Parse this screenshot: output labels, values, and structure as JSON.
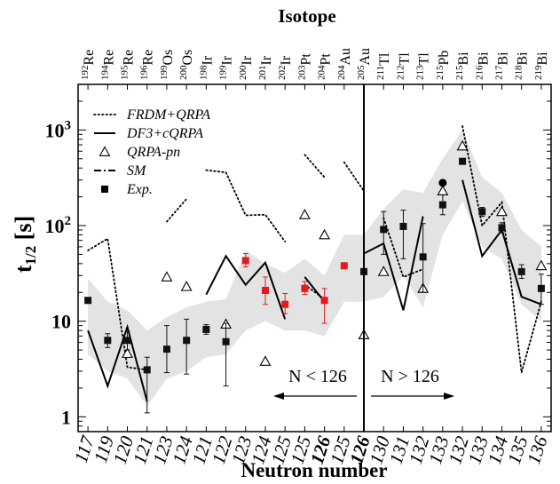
{
  "chart_data": {
    "type": "scatter",
    "title": "Isotope",
    "xlabel": "Neutron number",
    "ylabel": "t1/2 [s]",
    "y_scale": "log",
    "ylim": [
      0.7,
      3000
    ],
    "y_ticks": [
      {
        "value": 1,
        "base": "1",
        "exp": ""
      },
      {
        "value": 10,
        "base": "10",
        "exp": ""
      },
      {
        "value": 100,
        "base": "10",
        "exp": "2"
      },
      {
        "value": 1000,
        "base": "10",
        "exp": "3"
      }
    ],
    "grid": false,
    "x_categories": [
      "117",
      "119",
      "120",
      "121",
      "123",
      "124",
      "121",
      "122",
      "123",
      "124",
      "125",
      "125",
      "126",
      "125",
      "126",
      "130",
      "131",
      "132",
      "133",
      "132",
      "133",
      "134",
      "135",
      "136"
    ],
    "bold_categories": [
      12,
      14
    ],
    "isotopes": [
      {
        "mass": "192",
        "el": "Re"
      },
      {
        "mass": "194",
        "el": "Re"
      },
      {
        "mass": "195",
        "el": "Re"
      },
      {
        "mass": "196",
        "el": "Re"
      },
      {
        "mass": "199",
        "el": "Os"
      },
      {
        "mass": "200",
        "el": "Os"
      },
      {
        "mass": "198",
        "el": "Ir"
      },
      {
        "mass": "199",
        "el": "Ir"
      },
      {
        "mass": "200",
        "el": "Ir"
      },
      {
        "mass": "201",
        "el": "Ir"
      },
      {
        "mass": "202",
        "el": "Ir"
      },
      {
        "mass": "203",
        "el": "Pt"
      },
      {
        "mass": "204",
        "el": "Pt"
      },
      {
        "mass": "204",
        "el": "Au"
      },
      {
        "mass": "205",
        "el": "Au"
      },
      {
        "mass": "211",
        "el": "Tl"
      },
      {
        "mass": "212",
        "el": "Tl"
      },
      {
        "mass": "213",
        "el": "Tl"
      },
      {
        "mass": "215",
        "el": "Pb"
      },
      {
        "mass": "215",
        "el": "Bi"
      },
      {
        "mass": "216",
        "el": "Bi"
      },
      {
        "mass": "217",
        "el": "Bi"
      },
      {
        "mass": "218",
        "el": "Bi"
      },
      {
        "mass": "219",
        "el": "Bi"
      }
    ],
    "legend": [
      {
        "name": "FRDM+QRPA",
        "style": "dotted"
      },
      {
        "name": "DF3+cQRPA",
        "style": "solid"
      },
      {
        "name": "QRPA-pn",
        "style": "triangle"
      },
      {
        "name": "SM",
        "style": "dashdot"
      },
      {
        "name": "Exp.",
        "style": "square"
      }
    ],
    "legend_position": "top-left",
    "annotations": [
      {
        "text": "N < 126",
        "arrow": "left"
      },
      {
        "text": "N > 126",
        "arrow": "right"
      }
    ],
    "divider_at_index": 14,
    "colors": {
      "exp": "#111111",
      "exp_red": "#e41a1c",
      "band": "#e3e3e3",
      "line": "#000000"
    },
    "exp": [
      {
        "i": 0,
        "y": 16.5,
        "lo": 16.5,
        "hi": 16.5,
        "red": false
      },
      {
        "i": 1,
        "y": 6.3,
        "lo": 5.3,
        "hi": 7.4,
        "red": false
      },
      {
        "i": 2,
        "y": 6.3,
        "lo": 5.0,
        "hi": 7.8,
        "red": false
      },
      {
        "i": 3,
        "y": 3.1,
        "lo": 1.1,
        "hi": 4.2,
        "red": false
      },
      {
        "i": 4,
        "y": 5.1,
        "lo": 2.9,
        "hi": 9.0,
        "red": false
      },
      {
        "i": 5,
        "y": 6.3,
        "lo": 2.8,
        "hi": 10.5,
        "red": false
      },
      {
        "i": 6,
        "y": 8.2,
        "lo": 7.3,
        "hi": 9.2,
        "red": false
      },
      {
        "i": 7,
        "y": 6.1,
        "lo": 2.1,
        "hi": 9.5,
        "red": false
      },
      {
        "i": 8,
        "y": 43.0,
        "lo": 37.0,
        "hi": 51.0,
        "red": true
      },
      {
        "i": 9,
        "y": 21.0,
        "lo": 15.0,
        "hi": 29.0,
        "red": true
      },
      {
        "i": 10,
        "y": 15.0,
        "lo": 12.0,
        "hi": 19.5,
        "red": true
      },
      {
        "i": 11,
        "y": 22.0,
        "lo": 19.0,
        "hi": 26.0,
        "red": true
      },
      {
        "i": 12,
        "y": 16.5,
        "lo": 9.5,
        "hi": 22.0,
        "red": true
      },
      {
        "i": 13,
        "y": 38.0,
        "lo": 38.0,
        "hi": 38.0,
        "red": true
      },
      {
        "i": 14,
        "y": 33.0,
        "lo": 33.0,
        "hi": 33.0,
        "red": false
      },
      {
        "i": 15,
        "y": 91.0,
        "lo": 50.0,
        "hi": 140.0,
        "red": false
      },
      {
        "i": 16,
        "y": 98.0,
        "lo": 45.0,
        "hi": 145.0,
        "red": false
      },
      {
        "i": 17,
        "y": 47.0,
        "lo": 20.0,
        "hi": 105.0,
        "red": false
      },
      {
        "i": 18,
        "y": 165.0,
        "lo": 130.0,
        "hi": 210.0,
        "red": false
      },
      {
        "i": 19,
        "y": 470.0,
        "lo": 470.0,
        "hi": 470.0,
        "red": false
      },
      {
        "i": 20,
        "y": 140.0,
        "lo": 125.0,
        "hi": 155.0,
        "red": false
      },
      {
        "i": 21,
        "y": 95.0,
        "lo": 84.0,
        "hi": 107.0,
        "red": false
      },
      {
        "i": 22,
        "y": 33.0,
        "lo": 28.0,
        "hi": 39.0,
        "red": false
      },
      {
        "i": 23,
        "y": 22.0,
        "lo": 15.0,
        "hi": 31.0,
        "red": false
      }
    ],
    "sm": [
      {
        "i": 18,
        "y": 280.0
      }
    ],
    "qrpa_pn": [
      {
        "i": 2,
        "y": 4.6
      },
      {
        "i": 4,
        "y": 29.0
      },
      {
        "i": 5,
        "y": 23.0
      },
      {
        "i": 7,
        "y": 9.3
      },
      {
        "i": 9,
        "y": 3.8
      },
      {
        "i": 11,
        "y": 130.0
      },
      {
        "i": 12,
        "y": 80.0
      },
      {
        "i": 14,
        "y": 7.2
      },
      {
        "i": 15,
        "y": 33.0
      },
      {
        "i": 17,
        "y": 22.0
      },
      {
        "i": 18,
        "y": 230.0
      },
      {
        "i": 19,
        "y": 680.0
      },
      {
        "i": 21,
        "y": 140.0
      },
      {
        "i": 23,
        "y": 38.0
      }
    ],
    "df3_cqrpa": [
      [
        {
          "i": 0,
          "y": 8.0
        },
        {
          "i": 1,
          "y": 2.1
        },
        {
          "i": 2,
          "y": 8.7
        },
        {
          "i": 3,
          "y": 1.45
        }
      ],
      [
        {
          "i": 6,
          "y": 19.0
        },
        {
          "i": 7,
          "y": 48.0
        },
        {
          "i": 8,
          "y": 24.0
        },
        {
          "i": 9,
          "y": 41.0
        },
        {
          "i": 10,
          "y": 10.5
        }
      ],
      [
        {
          "i": 11,
          "y": 29.0
        },
        {
          "i": 12,
          "y": 16.0
        }
      ],
      [
        {
          "i": 14,
          "y": 51.0
        },
        {
          "i": 15,
          "y": 65.0
        },
        {
          "i": 16,
          "y": 13.0
        },
        {
          "i": 17,
          "y": 125.0
        }
      ],
      [
        {
          "i": 19,
          "y": 300.0
        },
        {
          "i": 20,
          "y": 48.0
        },
        {
          "i": 21,
          "y": 90.0
        },
        {
          "i": 22,
          "y": 18.0
        },
        {
          "i": 23,
          "y": 15.0
        }
      ]
    ],
    "frdm_qrpa": [
      [
        {
          "i": 0,
          "y": 55.0
        },
        {
          "i": 1,
          "y": 73.0
        },
        {
          "i": 2,
          "y": 3.3
        },
        {
          "i": 3,
          "y": 3.1
        }
      ],
      [
        {
          "i": 4,
          "y": 110.0
        },
        {
          "i": 5,
          "y": 190.0
        }
      ],
      [
        {
          "i": 6,
          "y": 380.0
        },
        {
          "i": 7,
          "y": 360.0
        },
        {
          "i": 8,
          "y": 128.0
        },
        {
          "i": 9,
          "y": 130.0
        },
        {
          "i": 10,
          "y": 68.0
        }
      ],
      [
        {
          "i": 11,
          "y": 550.0
        },
        {
          "i": 12,
          "y": 320.0
        }
      ],
      [
        {
          "i": 11,
          "y": 24.0
        },
        {
          "i": 12,
          "y": 17.0
        }
      ],
      [
        {
          "i": 13,
          "y": 460.0
        },
        {
          "i": 14,
          "y": 230.0
        }
      ],
      [
        {
          "i": 15,
          "y": 120.0
        },
        {
          "i": 16,
          "y": 29.0
        },
        {
          "i": 17,
          "y": 35.0
        }
      ],
      [
        {
          "i": 19,
          "y": 1100.0
        },
        {
          "i": 20,
          "y": 100.0
        },
        {
          "i": 21,
          "y": 175.0
        },
        {
          "i": 22,
          "y": 2.9
        },
        {
          "i": 23,
          "y": 16.0
        }
      ]
    ],
    "band": [
      {
        "i": 0,
        "lo": 4.5,
        "hi": 28.0
      },
      {
        "i": 1,
        "lo": 3.0,
        "hi": 16.0
      },
      {
        "i": 2,
        "lo": 2.5,
        "hi": 13.0
      },
      {
        "i": 3,
        "lo": 1.3,
        "hi": 8.0
      },
      {
        "i": 4,
        "lo": 2.5,
        "hi": 11.0
      },
      {
        "i": 5,
        "lo": 3.0,
        "hi": 14.0
      },
      {
        "i": 6,
        "lo": 4.2,
        "hi": 16.0
      },
      {
        "i": 7,
        "lo": 4.5,
        "hi": 17.0
      },
      {
        "i": 8,
        "lo": 8.0,
        "hi": 55.0
      },
      {
        "i": 9,
        "lo": 10.0,
        "hi": 40.0
      },
      {
        "i": 10,
        "lo": 8.0,
        "hi": 32.0
      },
      {
        "i": 11,
        "lo": 8.0,
        "hi": 45.0
      },
      {
        "i": 12,
        "lo": 7.0,
        "hi": 30.0
      },
      {
        "i": 13,
        "lo": 16.0,
        "hi": 80.0
      },
      {
        "i": 14,
        "lo": 16.0,
        "hi": 80.0
      },
      {
        "i": 15,
        "lo": 18.0,
        "hi": 150.0
      },
      {
        "i": 16,
        "lo": 30.0,
        "hi": 240.0
      },
      {
        "i": 17,
        "lo": 14.0,
        "hi": 220.0
      },
      {
        "i": 18,
        "lo": 80.0,
        "hi": 500.0
      },
      {
        "i": 19,
        "lo": 180.0,
        "hi": 1000.0
      },
      {
        "i": 20,
        "lo": 60.0,
        "hi": 320.0
      },
      {
        "i": 21,
        "lo": 45.0,
        "hi": 220.0
      },
      {
        "i": 22,
        "lo": 15.0,
        "hi": 90.0
      },
      {
        "i": 23,
        "lo": 10.0,
        "hi": 60.0
      }
    ]
  }
}
